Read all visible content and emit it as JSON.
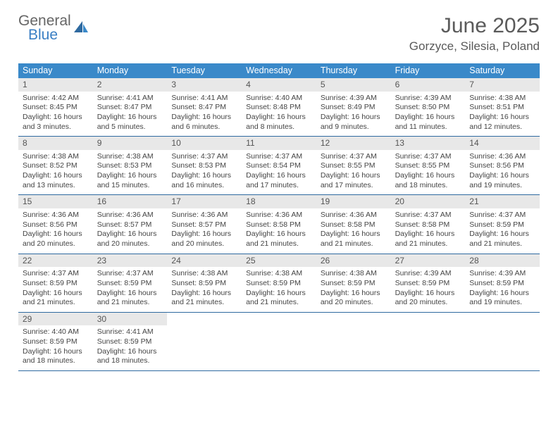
{
  "logo": {
    "text1": "General",
    "text2": "Blue"
  },
  "header": {
    "month_title": "June 2025",
    "location": "Gorzyce, Silesia, Poland"
  },
  "colors": {
    "header_bg": "#3a89c9",
    "daynum_bg": "#e8e8e8",
    "week_divider": "#2f6aa0",
    "text": "#444444",
    "logo_gray": "#666666",
    "logo_blue": "#3a7fc4"
  },
  "dow": [
    "Sunday",
    "Monday",
    "Tuesday",
    "Wednesday",
    "Thursday",
    "Friday",
    "Saturday"
  ],
  "weeks": [
    [
      {
        "n": "1",
        "sr": "Sunrise: 4:42 AM",
        "ss": "Sunset: 8:45 PM",
        "d1": "Daylight: 16 hours",
        "d2": "and 3 minutes."
      },
      {
        "n": "2",
        "sr": "Sunrise: 4:41 AM",
        "ss": "Sunset: 8:47 PM",
        "d1": "Daylight: 16 hours",
        "d2": "and 5 minutes."
      },
      {
        "n": "3",
        "sr": "Sunrise: 4:41 AM",
        "ss": "Sunset: 8:47 PM",
        "d1": "Daylight: 16 hours",
        "d2": "and 6 minutes."
      },
      {
        "n": "4",
        "sr": "Sunrise: 4:40 AM",
        "ss": "Sunset: 8:48 PM",
        "d1": "Daylight: 16 hours",
        "d2": "and 8 minutes."
      },
      {
        "n": "5",
        "sr": "Sunrise: 4:39 AM",
        "ss": "Sunset: 8:49 PM",
        "d1": "Daylight: 16 hours",
        "d2": "and 9 minutes."
      },
      {
        "n": "6",
        "sr": "Sunrise: 4:39 AM",
        "ss": "Sunset: 8:50 PM",
        "d1": "Daylight: 16 hours",
        "d2": "and 11 minutes."
      },
      {
        "n": "7",
        "sr": "Sunrise: 4:38 AM",
        "ss": "Sunset: 8:51 PM",
        "d1": "Daylight: 16 hours",
        "d2": "and 12 minutes."
      }
    ],
    [
      {
        "n": "8",
        "sr": "Sunrise: 4:38 AM",
        "ss": "Sunset: 8:52 PM",
        "d1": "Daylight: 16 hours",
        "d2": "and 13 minutes."
      },
      {
        "n": "9",
        "sr": "Sunrise: 4:38 AM",
        "ss": "Sunset: 8:53 PM",
        "d1": "Daylight: 16 hours",
        "d2": "and 15 minutes."
      },
      {
        "n": "10",
        "sr": "Sunrise: 4:37 AM",
        "ss": "Sunset: 8:53 PM",
        "d1": "Daylight: 16 hours",
        "d2": "and 16 minutes."
      },
      {
        "n": "11",
        "sr": "Sunrise: 4:37 AM",
        "ss": "Sunset: 8:54 PM",
        "d1": "Daylight: 16 hours",
        "d2": "and 17 minutes."
      },
      {
        "n": "12",
        "sr": "Sunrise: 4:37 AM",
        "ss": "Sunset: 8:55 PM",
        "d1": "Daylight: 16 hours",
        "d2": "and 17 minutes."
      },
      {
        "n": "13",
        "sr": "Sunrise: 4:37 AM",
        "ss": "Sunset: 8:55 PM",
        "d1": "Daylight: 16 hours",
        "d2": "and 18 minutes."
      },
      {
        "n": "14",
        "sr": "Sunrise: 4:36 AM",
        "ss": "Sunset: 8:56 PM",
        "d1": "Daylight: 16 hours",
        "d2": "and 19 minutes."
      }
    ],
    [
      {
        "n": "15",
        "sr": "Sunrise: 4:36 AM",
        "ss": "Sunset: 8:56 PM",
        "d1": "Daylight: 16 hours",
        "d2": "and 20 minutes."
      },
      {
        "n": "16",
        "sr": "Sunrise: 4:36 AM",
        "ss": "Sunset: 8:57 PM",
        "d1": "Daylight: 16 hours",
        "d2": "and 20 minutes."
      },
      {
        "n": "17",
        "sr": "Sunrise: 4:36 AM",
        "ss": "Sunset: 8:57 PM",
        "d1": "Daylight: 16 hours",
        "d2": "and 20 minutes."
      },
      {
        "n": "18",
        "sr": "Sunrise: 4:36 AM",
        "ss": "Sunset: 8:58 PM",
        "d1": "Daylight: 16 hours",
        "d2": "and 21 minutes."
      },
      {
        "n": "19",
        "sr": "Sunrise: 4:36 AM",
        "ss": "Sunset: 8:58 PM",
        "d1": "Daylight: 16 hours",
        "d2": "and 21 minutes."
      },
      {
        "n": "20",
        "sr": "Sunrise: 4:37 AM",
        "ss": "Sunset: 8:58 PM",
        "d1": "Daylight: 16 hours",
        "d2": "and 21 minutes."
      },
      {
        "n": "21",
        "sr": "Sunrise: 4:37 AM",
        "ss": "Sunset: 8:59 PM",
        "d1": "Daylight: 16 hours",
        "d2": "and 21 minutes."
      }
    ],
    [
      {
        "n": "22",
        "sr": "Sunrise: 4:37 AM",
        "ss": "Sunset: 8:59 PM",
        "d1": "Daylight: 16 hours",
        "d2": "and 21 minutes."
      },
      {
        "n": "23",
        "sr": "Sunrise: 4:37 AM",
        "ss": "Sunset: 8:59 PM",
        "d1": "Daylight: 16 hours",
        "d2": "and 21 minutes."
      },
      {
        "n": "24",
        "sr": "Sunrise: 4:38 AM",
        "ss": "Sunset: 8:59 PM",
        "d1": "Daylight: 16 hours",
        "d2": "and 21 minutes."
      },
      {
        "n": "25",
        "sr": "Sunrise: 4:38 AM",
        "ss": "Sunset: 8:59 PM",
        "d1": "Daylight: 16 hours",
        "d2": "and 21 minutes."
      },
      {
        "n": "26",
        "sr": "Sunrise: 4:38 AM",
        "ss": "Sunset: 8:59 PM",
        "d1": "Daylight: 16 hours",
        "d2": "and 20 minutes."
      },
      {
        "n": "27",
        "sr": "Sunrise: 4:39 AM",
        "ss": "Sunset: 8:59 PM",
        "d1": "Daylight: 16 hours",
        "d2": "and 20 minutes."
      },
      {
        "n": "28",
        "sr": "Sunrise: 4:39 AM",
        "ss": "Sunset: 8:59 PM",
        "d1": "Daylight: 16 hours",
        "d2": "and 19 minutes."
      }
    ],
    [
      {
        "n": "29",
        "sr": "Sunrise: 4:40 AM",
        "ss": "Sunset: 8:59 PM",
        "d1": "Daylight: 16 hours",
        "d2": "and 18 minutes."
      },
      {
        "n": "30",
        "sr": "Sunrise: 4:41 AM",
        "ss": "Sunset: 8:59 PM",
        "d1": "Daylight: 16 hours",
        "d2": "and 18 minutes."
      },
      null,
      null,
      null,
      null,
      null
    ]
  ]
}
